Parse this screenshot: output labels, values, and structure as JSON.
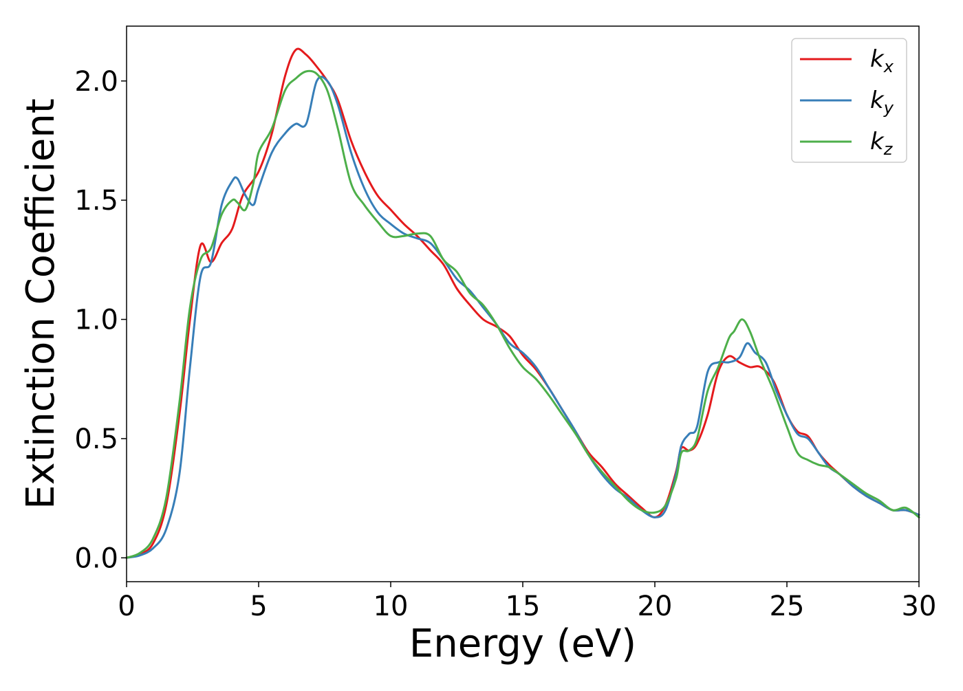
{
  "chart_data": {
    "type": "line",
    "title": "",
    "xlabel": "Energy (eV)",
    "ylabel": "Extinction Coefficient",
    "xlim": [
      0,
      30
    ],
    "ylim": [
      -0.1,
      2.23
    ],
    "xticks": [
      0,
      5,
      10,
      15,
      20,
      25,
      30
    ],
    "xtick_labels": [
      "0",
      "5",
      "10",
      "15",
      "20",
      "25",
      "30"
    ],
    "yticks": [
      0.0,
      0.5,
      1.0,
      1.5,
      2.0
    ],
    "ytick_labels": [
      "0.0",
      "0.5",
      "1.0",
      "1.5",
      "2.0"
    ],
    "grid": false,
    "legend_position": "top-right",
    "series": [
      {
        "name": "k",
        "subscript": "x",
        "color": "#e41a1c",
        "x": [
          0,
          0.5,
          1.0,
          1.5,
          2.0,
          2.4,
          2.8,
          3.2,
          3.6,
          4.0,
          4.4,
          5.0,
          5.5,
          6.0,
          6.4,
          6.8,
          7.2,
          7.6,
          8.0,
          8.5,
          9.0,
          9.5,
          10.0,
          10.5,
          11.0,
          11.5,
          12.0,
          12.5,
          13.0,
          13.5,
          14.0,
          14.5,
          15.0,
          15.5,
          16.0,
          16.5,
          17.0,
          17.5,
          18.0,
          18.5,
          19.0,
          19.5,
          20.0,
          20.4,
          20.8,
          21.0,
          21.3,
          21.6,
          22.0,
          22.4,
          22.8,
          23.2,
          23.6,
          24.0,
          24.5,
          25.0,
          25.4,
          25.8,
          26.2,
          26.6,
          27.0,
          27.5,
          28.0,
          28.5,
          29.0,
          29.5,
          30.0
        ],
        "y": [
          0.0,
          0.015,
          0.06,
          0.22,
          0.6,
          1.0,
          1.31,
          1.24,
          1.32,
          1.38,
          1.52,
          1.62,
          1.78,
          2.02,
          2.13,
          2.11,
          2.06,
          2.0,
          1.92,
          1.75,
          1.62,
          1.52,
          1.46,
          1.4,
          1.35,
          1.29,
          1.23,
          1.13,
          1.06,
          1.0,
          0.97,
          0.93,
          0.85,
          0.79,
          0.71,
          0.62,
          0.53,
          0.44,
          0.38,
          0.31,
          0.26,
          0.21,
          0.17,
          0.22,
          0.36,
          0.46,
          0.45,
          0.48,
          0.6,
          0.78,
          0.845,
          0.82,
          0.8,
          0.8,
          0.74,
          0.6,
          0.53,
          0.51,
          0.44,
          0.39,
          0.35,
          0.3,
          0.26,
          0.23,
          0.2,
          0.2,
          0.18
        ]
      },
      {
        "name": "k",
        "subscript": "y",
        "color": "#377eb8",
        "x": [
          0,
          0.5,
          1.0,
          1.5,
          2.0,
          2.4,
          2.8,
          3.2,
          3.6,
          4.0,
          4.2,
          4.5,
          4.8,
          5.0,
          5.5,
          6.0,
          6.4,
          6.8,
          7.2,
          7.6,
          8.0,
          8.5,
          9.0,
          9.5,
          10.0,
          10.5,
          11.0,
          11.5,
          12.0,
          12.5,
          13.0,
          13.5,
          14.0,
          14.5,
          15.0,
          15.5,
          16.0,
          16.5,
          17.0,
          17.5,
          18.0,
          18.5,
          19.0,
          19.5,
          20.0,
          20.4,
          20.8,
          21.0,
          21.3,
          21.6,
          22.0,
          22.4,
          22.8,
          23.2,
          23.5,
          23.8,
          24.2,
          24.6,
          25.0,
          25.4,
          25.8,
          26.2,
          26.6,
          27.0,
          27.5,
          28.0,
          28.5,
          29.0,
          29.5,
          30.0
        ],
        "y": [
          0.0,
          0.01,
          0.04,
          0.12,
          0.35,
          0.8,
          1.18,
          1.24,
          1.48,
          1.58,
          1.59,
          1.52,
          1.48,
          1.55,
          1.7,
          1.78,
          1.82,
          1.82,
          2.0,
          2.0,
          1.9,
          1.7,
          1.55,
          1.45,
          1.4,
          1.36,
          1.34,
          1.32,
          1.25,
          1.17,
          1.12,
          1.05,
          0.98,
          0.9,
          0.86,
          0.8,
          0.71,
          0.62,
          0.53,
          0.43,
          0.35,
          0.29,
          0.25,
          0.2,
          0.17,
          0.2,
          0.35,
          0.47,
          0.52,
          0.55,
          0.78,
          0.82,
          0.82,
          0.84,
          0.9,
          0.86,
          0.82,
          0.7,
          0.6,
          0.52,
          0.5,
          0.44,
          0.38,
          0.35,
          0.3,
          0.26,
          0.23,
          0.2,
          0.2,
          0.18
        ]
      },
      {
        "name": "k",
        "subscript": "z",
        "color": "#4daf4a",
        "x": [
          0,
          0.5,
          1.0,
          1.5,
          2.0,
          2.4,
          2.8,
          3.2,
          3.6,
          4.0,
          4.2,
          4.5,
          4.8,
          5.0,
          5.5,
          6.0,
          6.4,
          6.8,
          7.2,
          7.6,
          8.0,
          8.5,
          9.0,
          9.5,
          10.0,
          10.5,
          11.0,
          11.5,
          12.0,
          12.5,
          13.0,
          13.5,
          14.0,
          14.5,
          15.0,
          15.5,
          16.0,
          16.5,
          17.0,
          17.5,
          18.0,
          18.5,
          19.0,
          19.5,
          20.0,
          20.4,
          20.8,
          21.0,
          21.3,
          21.6,
          22.0,
          22.4,
          22.8,
          23.0,
          23.3,
          23.6,
          24.0,
          24.5,
          25.0,
          25.4,
          25.8,
          26.2,
          26.6,
          27.0,
          27.5,
          28.0,
          28.5,
          29.0,
          29.5,
          30.0
        ],
        "y": [
          0.0,
          0.02,
          0.08,
          0.25,
          0.65,
          1.05,
          1.25,
          1.3,
          1.44,
          1.5,
          1.49,
          1.46,
          1.57,
          1.7,
          1.8,
          1.96,
          2.01,
          2.04,
          2.03,
          1.96,
          1.8,
          1.57,
          1.48,
          1.41,
          1.35,
          1.35,
          1.36,
          1.35,
          1.25,
          1.2,
          1.11,
          1.06,
          0.98,
          0.88,
          0.8,
          0.75,
          0.68,
          0.6,
          0.52,
          0.43,
          0.36,
          0.3,
          0.24,
          0.2,
          0.19,
          0.22,
          0.33,
          0.44,
          0.45,
          0.5,
          0.7,
          0.8,
          0.92,
          0.95,
          1.0,
          0.95,
          0.83,
          0.7,
          0.55,
          0.44,
          0.41,
          0.39,
          0.38,
          0.35,
          0.31,
          0.27,
          0.24,
          0.2,
          0.21,
          0.17
        ]
      }
    ]
  }
}
